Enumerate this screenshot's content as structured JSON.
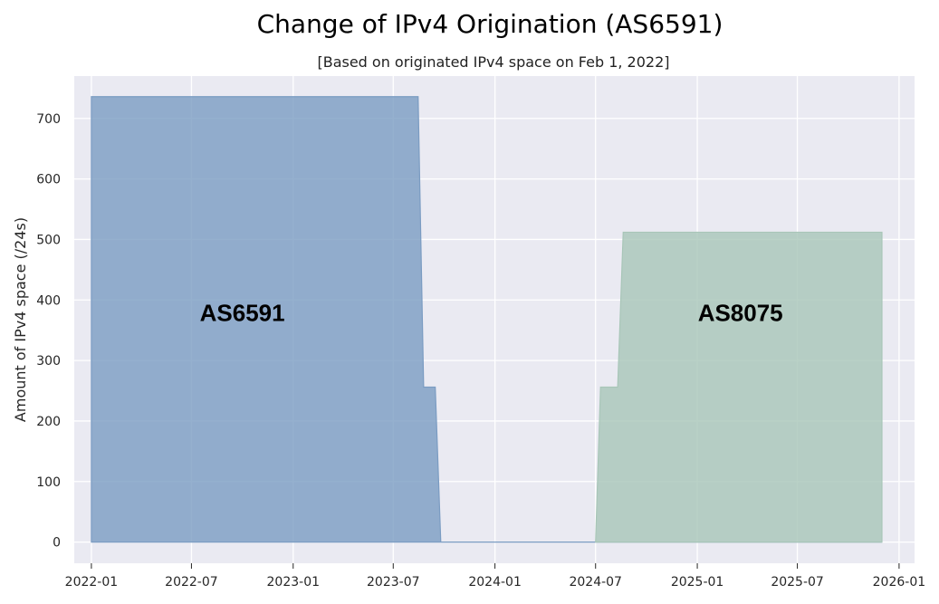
{
  "chart_data": {
    "type": "area",
    "title": "Change of IPv4 Origination (AS6591)",
    "subtitle": "[Based on originated IPv4 space on Feb 1, 2022]",
    "xlabel": "",
    "ylabel": "Amount of IPv4 space (/24s)",
    "xlim": [
      "2021-12-01",
      "2026-01-29"
    ],
    "ylim": [
      -35,
      770
    ],
    "x_ticks": [
      "2022-01",
      "2022-07",
      "2023-01",
      "2023-07",
      "2024-01",
      "2024-07",
      "2025-01",
      "2025-07",
      "2026-01"
    ],
    "y_ticks": [
      0,
      100,
      200,
      300,
      400,
      500,
      600,
      700
    ],
    "grid": true,
    "background": "#eaeaf2",
    "series": [
      {
        "name": "AS6591",
        "color": "#7b9cc2",
        "points": [
          [
            "2022-01-01",
            0
          ],
          [
            "2022-01-01",
            736
          ],
          [
            "2023-08-15",
            736
          ],
          [
            "2023-08-25",
            256
          ],
          [
            "2023-09-15",
            256
          ],
          [
            "2023-09-25",
            0
          ],
          [
            "2025-12-01",
            0
          ]
        ]
      },
      {
        "name": "AS8075",
        "color": "#a8c6b8",
        "points": [
          [
            "2024-07-01",
            0
          ],
          [
            "2024-07-10",
            256
          ],
          [
            "2024-08-10",
            256
          ],
          [
            "2024-08-20",
            512
          ],
          [
            "2025-12-01",
            512
          ],
          [
            "2025-12-01",
            0
          ]
        ]
      }
    ],
    "annotations": [
      {
        "text": "AS6591",
        "x": "2022-10-01",
        "y": 365
      },
      {
        "text": "AS8075",
        "x": "2025-03-20",
        "y": 365
      }
    ]
  }
}
